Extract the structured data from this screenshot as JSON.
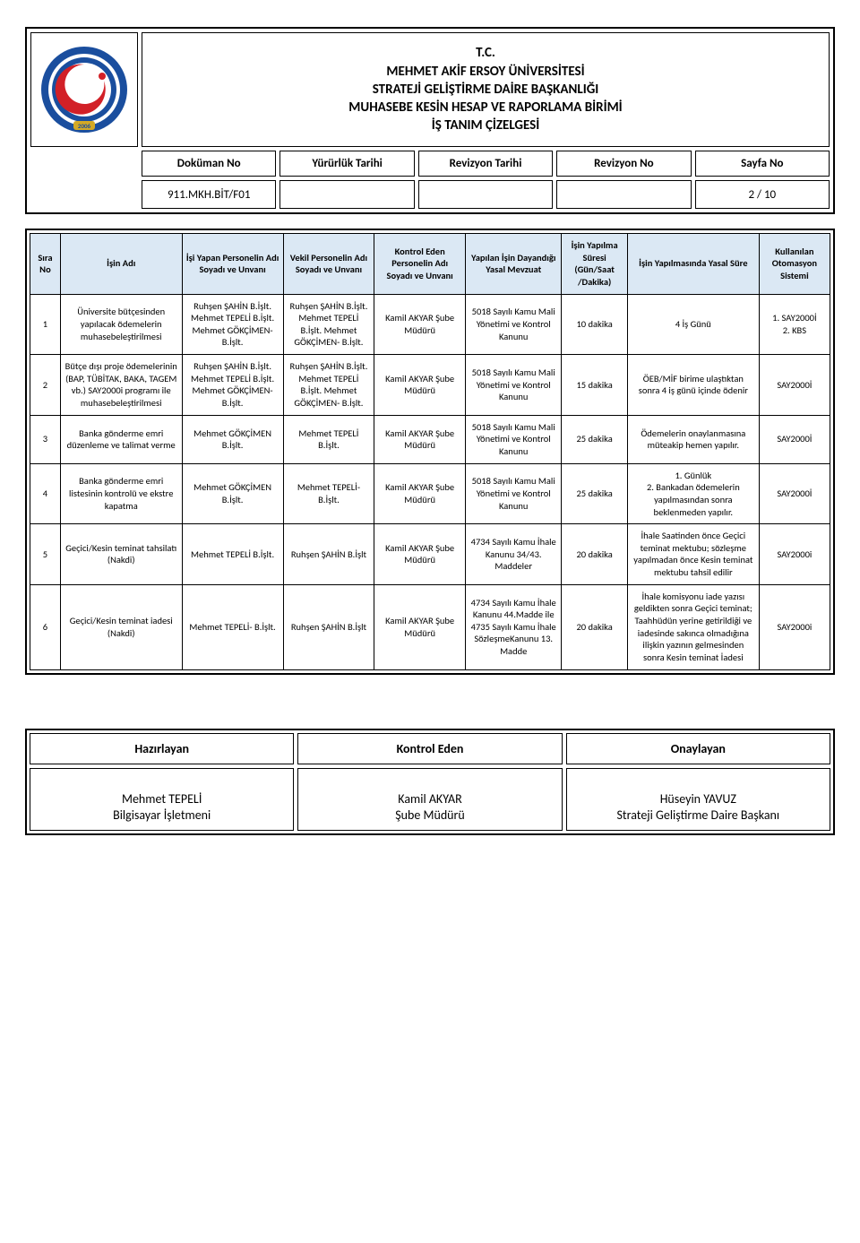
{
  "header": {
    "title_lines": [
      "T.C.",
      "MEHMET AKİF ERSOY ÜNİVERSİTESİ",
      "STRATEJİ GELİŞTİRME DAİRE BAŞKANLIĞI",
      "MUHASEBE KESİN HESAP VE RAPORLAMA BİRİMİ",
      "İŞ TANIM ÇİZELGESİ"
    ],
    "meta_labels": [
      "Doküman No",
      "Yürürlük Tarihi",
      "Revizyon Tarihi",
      "Revizyon No",
      "Sayfa No"
    ],
    "meta_values": [
      "911.MKH.BİT/F01",
      "",
      "",
      "",
      "2 / 10"
    ]
  },
  "columns": [
    "Sıra No",
    "İşin Adı",
    "İşi Yapan Personelin Adı Soyadı ve Unvanı",
    "Vekil Personelin Adı Soyadı ve Unvanı",
    "Kontrol Eden Personelin Adı Soyadı ve Unvanı",
    "Yapılan İşin Dayandığı Yasal Mevzuat",
    "İşin Yapılma Süresi (Gün/Saat /Dakika)",
    "İşin Yapılmasında Yasal Süre",
    "Kullanılan Otomasyon Sistemi"
  ],
  "rows": [
    {
      "no": "1",
      "ad": "Üniversite bütçesinden yapılacak ödemelerin muhasebeleştirilmesi",
      "isi": "Ruhşen ŞAHİN B.İşlt. Mehmet TEPELİ B.İşlt. Mehmet GÖKÇİMEN-B.İşlt.",
      "vekil": "Ruhşen ŞAHİN B.İşlt. Mehmet TEPELİ B.İşlt. Mehmet GÖKÇİMEN- B.İşlt.",
      "kontrol": "Kamil AKYAR Şube Müdürü",
      "mevzuat": "5018 Sayılı Kamu Mali Yönetimi ve Kontrol Kanunu",
      "sure": "10 dakika",
      "yasal": "4 İş Günü",
      "oto": "1. SAY2000İ\n2. KBS"
    },
    {
      "no": "2",
      "ad": "Bütçe dışı proje ödemelerinin (BAP, TÜBİTAK, BAKA, TAGEM vb.) SAY2000i programı ile muhasebeleştirilmesi",
      "isi": "Ruhşen ŞAHİN B.İşlt. Mehmet TEPELİ B.İşlt. Mehmet GÖKÇİMEN-B.İşlt.",
      "vekil": "Ruhşen ŞAHİN B.İşlt. Mehmet TEPELİ B.İşlt. Mehmet GÖKÇİMEN- B.İşlt.",
      "kontrol": "Kamil AKYAR Şube Müdürü",
      "mevzuat": "5018 Sayılı Kamu Mali Yönetimi ve Kontrol Kanunu",
      "sure": "15 dakika",
      "yasal": "ÖEB/MİF birime ulaştıktan sonra 4 iş günü içinde ödenir",
      "oto": "SAY2000İ"
    },
    {
      "no": "3",
      "ad": "Banka gönderme emri düzenleme ve talimat verme",
      "isi": "Mehmet GÖKÇİMEN B.İşlt.",
      "vekil": "Mehmet TEPELİ B.İşlt.",
      "kontrol": "Kamil AKYAR Şube Müdürü",
      "mevzuat": "5018 Sayılı Kamu Mali Yönetimi ve Kontrol Kanunu",
      "sure": "25 dakika",
      "yasal": "Ödemelerin onaylanmasına müteakip hemen yapılır.",
      "oto": "SAY2000İ"
    },
    {
      "no": "4",
      "ad": "Banka gönderme emri listesinin kontrolü ve ekstre kapatma",
      "isi": "Mehmet GÖKÇİMEN B.İşlt.",
      "vekil": "Mehmet TEPELİ-B.İşlt.",
      "kontrol": "Kamil AKYAR Şube Müdürü",
      "mevzuat": "5018 Sayılı Kamu Mali Yönetimi ve Kontrol Kanunu",
      "sure": "25 dakika",
      "yasal": "1. Günlük\n2. Bankadan ödemelerin yapılmasından sonra beklenmeden yapılır.",
      "oto": "SAY2000İ"
    },
    {
      "no": "5",
      "ad": "Geçici/Kesin teminat tahsilatı (Nakdi)",
      "isi": "Mehmet TEPELİ B.İşlt.",
      "vekil": "Ruhşen ŞAHİN B.İşlt",
      "kontrol": "Kamil AKYAR Şube Müdürü",
      "mevzuat": "4734 Sayılı Kamu İhale Kanunu 34/43. Maddeler",
      "sure": "20 dakika",
      "yasal": "İhale Saatinden önce Geçici teminat mektubu; sözleşme yapılmadan önce Kesin teminat mektubu tahsil edilir",
      "oto": "SAY2000i"
    },
    {
      "no": "6",
      "ad": "Geçici/Kesin teminat iadesi (Nakdi)",
      "isi": "Mehmet TEPELİ- B.İşlt.",
      "vekil": "Ruhşen ŞAHİN B.İşlt",
      "kontrol": "Kamil AKYAR Şube Müdürü",
      "mevzuat": "4734 Sayılı Kamu İhale Kanunu 44.Madde ile 4735 Sayılı Kamu İhale SözleşmeKanunu 13. Madde",
      "sure": "20 dakika",
      "yasal": "İhale komisyonu iade yazısı geldikten sonra Geçici teminat; Taahhüdün yerine getirildiği ve iadesinde sakınca olmadığına ilişkin yazının gelmesinden sonra Kesin teminat İadesi",
      "oto": "SAY2000i"
    }
  ],
  "footer": {
    "labels": [
      "Hazırlayan",
      "Kontrol Eden",
      "Onaylayan"
    ],
    "people": [
      {
        "name": "Mehmet TEPELİ",
        "title": "Bilgisayar İşletmeni"
      },
      {
        "name": "Kamil AKYAR",
        "title": "Şube Müdürü"
      },
      {
        "name": "Hüseyin YAVUZ",
        "title": "Strateji Geliştirme Daire Başkanı"
      }
    ]
  },
  "colors": {
    "header_bg": "#dbe8f4",
    "logo_blue": "#1a4e9e",
    "logo_gold": "#d4a925",
    "logo_red": "#d22027"
  }
}
